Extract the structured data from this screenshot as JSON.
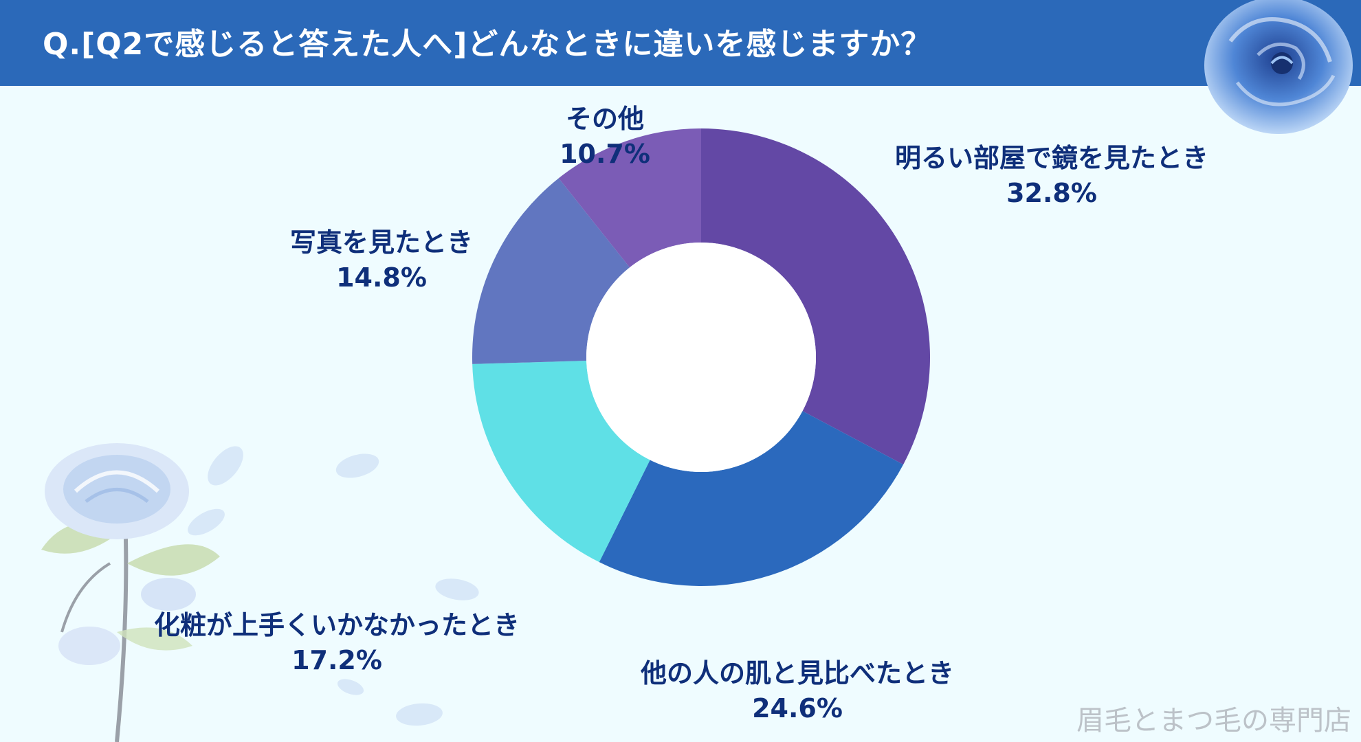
{
  "header": {
    "title": "Q.[Q2で感じると答えた人へ]どんなときに違いを感じますか？",
    "background_color": "#2b69b9"
  },
  "chart_data": {
    "type": "donut",
    "title": "Q.[Q2で感じると答えた人へ]どんなときに違いを感じますか？",
    "slices": [
      {
        "label": "明るい部屋で鏡を見たとき",
        "value": 32.8,
        "value_label": "32.8%",
        "color": "#6348a5"
      },
      {
        "label": "他の人の肌と見比べたとき",
        "value": 24.6,
        "value_label": "24.6%",
        "color": "#2b69bd"
      },
      {
        "label": "化粧が上手くいかなかったとき",
        "value": 17.2,
        "value_label": "17.2%",
        "color": "#5fe0e6"
      },
      {
        "label": "写真を見たとき",
        "value": 14.8,
        "value_label": "14.8%",
        "color": "#6176c0"
      },
      {
        "label": "その他",
        "value": 10.7,
        "value_label": "10.7%",
        "color": "#7b5cb6"
      }
    ],
    "start_angle": "top (12 o'clock)",
    "direction": "clockwise",
    "legend": "none (labels beside slices)"
  },
  "watermark": {
    "text": "眉毛とまつ毛の専門店"
  },
  "decorations": {
    "icons": [
      "blue-rose-icon",
      "blue-rose-stem-icon",
      "petal-icon"
    ]
  }
}
